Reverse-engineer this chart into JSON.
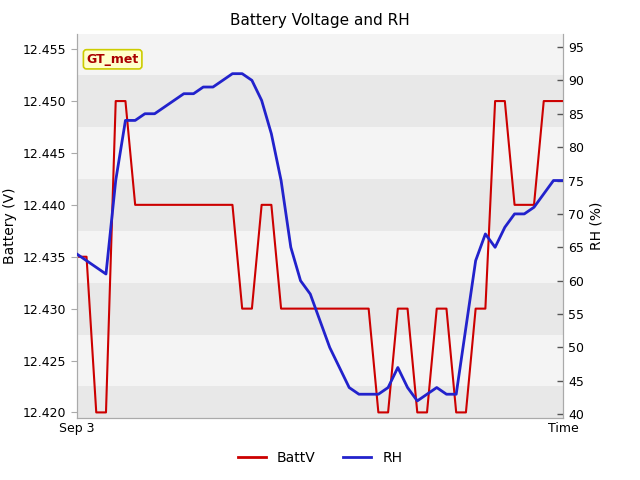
{
  "title": "Battery Voltage and RH",
  "xlabel_right": "Time",
  "xlabel_left": "Sep 3",
  "ylabel_left": "Battery (V)",
  "ylabel_right": "RH (%)",
  "legend_labels": [
    "BattV",
    "RH"
  ],
  "legend_colors": [
    "#cc0000",
    "#2222cc"
  ],
  "annotation_label": "GT_met",
  "annotation_color": "#aa0000",
  "annotation_bg": "#ffffcc",
  "annotation_edge": "#cccc00",
  "batt_ylim": [
    12.4195,
    12.4565
  ],
  "rh_ylim": [
    39.5,
    97
  ],
  "batt_yticks": [
    12.42,
    12.425,
    12.43,
    12.435,
    12.44,
    12.445,
    12.45,
    12.455
  ],
  "rh_yticks": [
    40,
    45,
    50,
    55,
    60,
    65,
    70,
    75,
    80,
    85,
    90,
    95
  ],
  "bg_bands": [
    [
      12.4195,
      12.4225,
      "#e8e8e8"
    ],
    [
      12.4225,
      12.4275,
      "#f4f4f4"
    ],
    [
      12.4275,
      12.4325,
      "#e8e8e8"
    ],
    [
      12.4325,
      12.4375,
      "#f4f4f4"
    ],
    [
      12.4375,
      12.4425,
      "#e8e8e8"
    ],
    [
      12.4425,
      12.4475,
      "#f4f4f4"
    ],
    [
      12.4475,
      12.4525,
      "#e8e8e8"
    ],
    [
      12.4525,
      12.4565,
      "#f4f4f4"
    ]
  ],
  "batt_x": [
    0,
    1,
    2,
    3,
    4,
    5,
    6,
    7,
    8,
    9,
    10,
    11,
    12,
    13,
    14,
    15,
    16,
    17,
    18,
    19,
    20,
    21,
    22,
    23,
    24,
    25,
    26,
    27,
    28,
    29,
    30,
    31,
    32,
    33,
    34,
    35,
    36,
    37,
    38,
    39,
    40,
    41,
    42,
    43,
    44,
    45,
    46,
    47,
    48,
    49,
    50
  ],
  "batt_y": [
    12.435,
    12.435,
    12.42,
    12.42,
    12.45,
    12.45,
    12.44,
    12.44,
    12.44,
    12.44,
    12.44,
    12.44,
    12.44,
    12.44,
    12.44,
    12.44,
    12.44,
    12.43,
    12.43,
    12.44,
    12.44,
    12.43,
    12.43,
    12.43,
    12.43,
    12.43,
    12.43,
    12.43,
    12.43,
    12.43,
    12.43,
    12.42,
    12.42,
    12.43,
    12.43,
    12.42,
    12.42,
    12.43,
    12.43,
    12.42,
    12.42,
    12.43,
    12.43,
    12.45,
    12.45,
    12.44,
    12.44,
    12.44,
    12.45,
    12.45,
    12.45
  ],
  "rh_x": [
    0,
    1,
    2,
    3,
    4,
    5,
    6,
    7,
    8,
    9,
    10,
    11,
    12,
    13,
    14,
    15,
    16,
    17,
    18,
    19,
    20,
    21,
    22,
    23,
    24,
    25,
    26,
    27,
    28,
    29,
    30,
    31,
    32,
    33,
    34,
    35,
    36,
    37,
    38,
    39,
    40,
    41,
    42,
    43,
    44,
    45,
    46,
    47,
    48,
    49,
    50
  ],
  "rh_y": [
    64,
    63,
    62,
    61,
    75,
    84,
    84,
    85,
    85,
    86,
    87,
    88,
    88,
    89,
    89,
    90,
    91,
    91,
    90,
    87,
    82,
    75,
    65,
    60,
    58,
    54,
    50,
    47,
    44,
    43,
    43,
    43,
    44,
    47,
    44,
    42,
    43,
    44,
    43,
    43,
    53,
    63,
    67,
    65,
    68,
    70,
    70,
    71,
    73,
    75,
    75
  ],
  "figsize": [
    6.4,
    4.8
  ],
  "dpi": 100,
  "bg_color": "#ffffff"
}
